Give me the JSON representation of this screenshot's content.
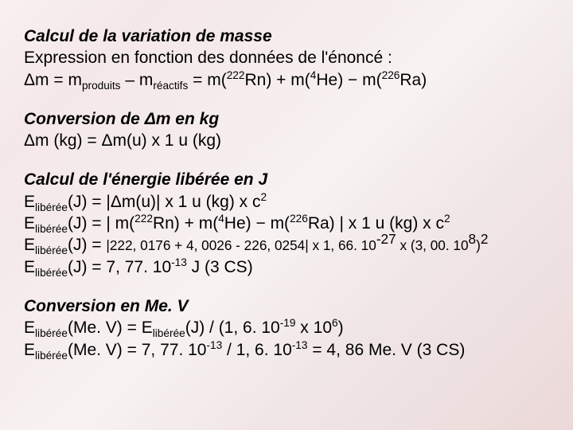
{
  "sections": {
    "mass_variation": {
      "title": "Calcul de la variation de masse",
      "line1": "Expression en  fonction des données de l'énoncé :",
      "dm": "Δm = m",
      "prod": "produits",
      "minus": " – m",
      "react": "réactifs",
      "eq": " = m(",
      "n222": "222",
      "rn": "Rn) + m(",
      "n4": "4",
      "he": "He) − m(",
      "n226": "226",
      "ra": "Ra)"
    },
    "conversion_kg": {
      "title": "Conversion de Δm en kg",
      "line": "Δm (kg) = Δm(u) x 1 u (kg)"
    },
    "energy_j": {
      "title": "Calcul de l'énergie libérée en J",
      "E": "E",
      "lib": "libérée",
      "l1a": "(J) = |Δm(u)| x 1 u (kg) x c",
      "exp2": "2",
      "l2a": "(J) = | m(",
      "n222": "222",
      "rn": "Rn) + m(",
      "n4": "4",
      "he": "He) − m(",
      "n226": "226",
      "ra": "Ra) | x 1 u (kg) x c",
      "l3a": "(J) = ",
      "l3b": "|222, 0176 + 4, 0026 - 226, 0254| x 1, 66. 10",
      "exp_m27": "-27",
      "l3c": " x (3, 00. 10",
      "exp8": "8",
      "l3d": ")",
      "l4a": "(J) = 7, 77. 10",
      "exp_m13": "-13",
      "l4b": " J (3 CS)"
    },
    "conversion_mev": {
      "title": "Conversion en Me. V",
      "E": "E",
      "lib": "libérée",
      "l1a": "(Me. V) = E",
      "l1b": "(J) / (1, 6. 10",
      "exp_m19": "-19",
      "l1c": " x 10",
      "exp6": "6",
      "l1d": ")",
      "l2a": "(Me. V) = 7, 77. 10",
      "exp_m13a": "-13",
      "l2b": " / 1, 6. 10",
      "exp_m13b": "-13",
      "l2c": " = 4, 86 Me. V (3 CS)"
    }
  }
}
